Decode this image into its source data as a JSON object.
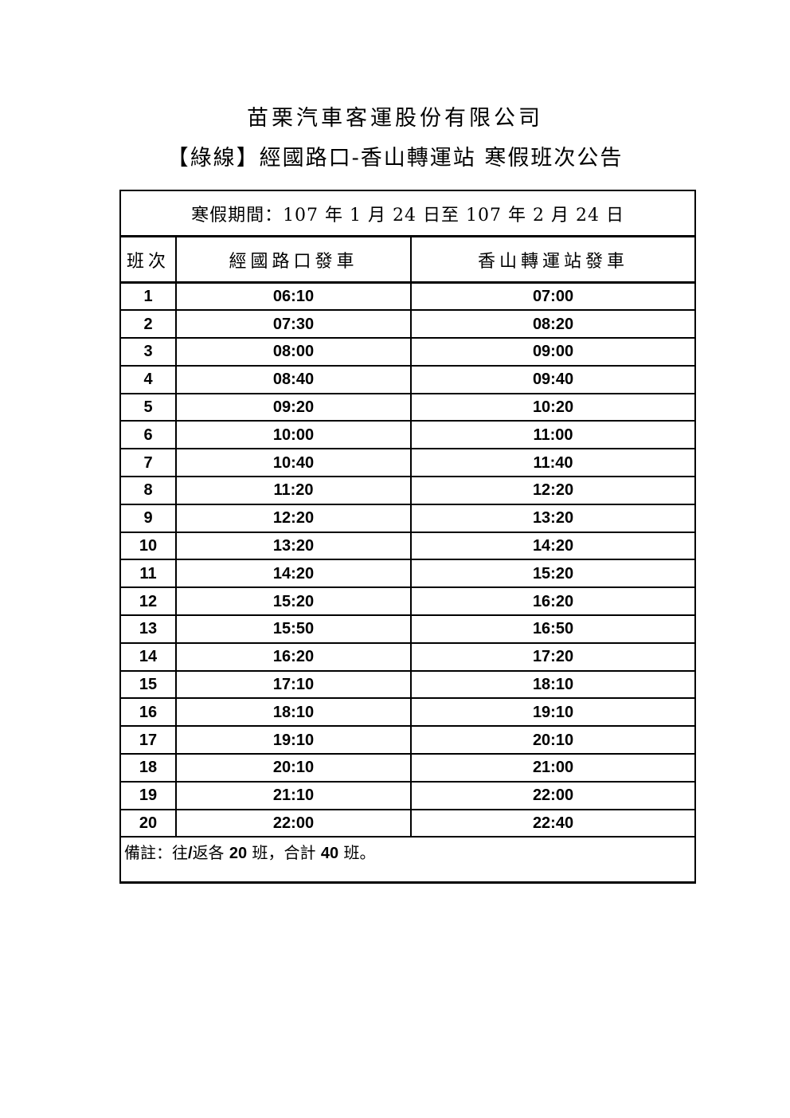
{
  "header": {
    "company": "苗栗汽車客運股份有限公司",
    "route": "【綠線】經國路口-香山轉運站 寒假班次公告"
  },
  "schedule": {
    "period": "寒假期間：107 年 1 月 24 日至 107 年 2 月 24 日",
    "columns": [
      "班次",
      "經國路口發車",
      "香山轉運站發車"
    ],
    "rows": [
      {
        "no": "1",
        "depart": "06:10",
        "return": "07:00"
      },
      {
        "no": "2",
        "depart": "07:30",
        "return": "08:20"
      },
      {
        "no": "3",
        "depart": "08:00",
        "return": "09:00"
      },
      {
        "no": "4",
        "depart": "08:40",
        "return": "09:40"
      },
      {
        "no": "5",
        "depart": "09:20",
        "return": "10:20"
      },
      {
        "no": "6",
        "depart": "10:00",
        "return": "11:00"
      },
      {
        "no": "7",
        "depart": "10:40",
        "return": "11:40"
      },
      {
        "no": "8",
        "depart": "11:20",
        "return": "12:20"
      },
      {
        "no": "9",
        "depart": "12:20",
        "return": "13:20"
      },
      {
        "no": "10",
        "depart": "13:20",
        "return": "14:20"
      },
      {
        "no": "11",
        "depart": "14:20",
        "return": "15:20"
      },
      {
        "no": "12",
        "depart": "15:20",
        "return": "16:20"
      },
      {
        "no": "13",
        "depart": "15:50",
        "return": "16:50"
      },
      {
        "no": "14",
        "depart": "16:20",
        "return": "17:20"
      },
      {
        "no": "15",
        "depart": "17:10",
        "return": "18:10"
      },
      {
        "no": "16",
        "depart": "18:10",
        "return": "19:10"
      },
      {
        "no": "17",
        "depart": "19:10",
        "return": "20:10"
      },
      {
        "no": "18",
        "depart": "20:10",
        "return": "21:00"
      },
      {
        "no": "19",
        "depart": "21:10",
        "return": "22:00"
      },
      {
        "no": "20",
        "depart": "22:00",
        "return": "22:40"
      }
    ],
    "note": {
      "prefix": "備註：往",
      "slash": "/",
      "mid1": "返各 ",
      "outbound_count": "20",
      "mid2": " 班，合計 ",
      "total_count": "40",
      "suffix": " 班。"
    }
  },
  "colors": {
    "text": "#000000",
    "background": "#ffffff",
    "border": "#000000"
  }
}
